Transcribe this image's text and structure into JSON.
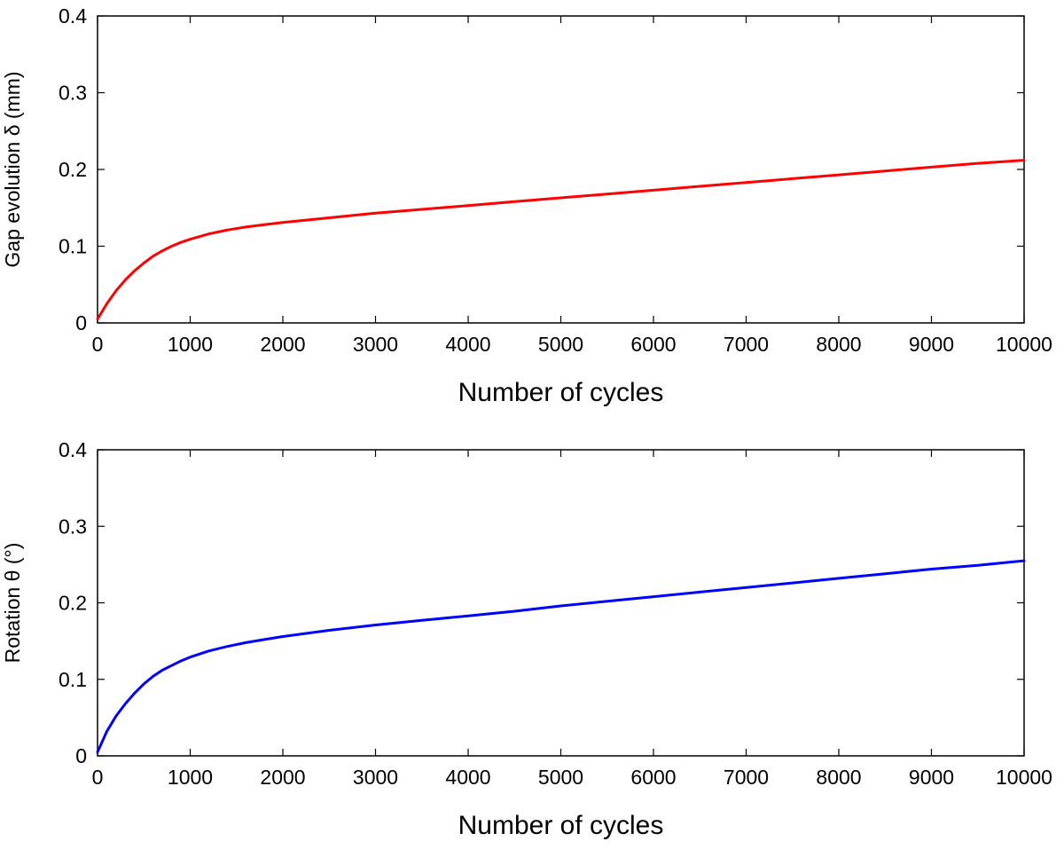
{
  "chart_data": [
    {
      "type": "line",
      "xlabel": "Number of cycles",
      "ylabel": "Gap evolution δ (mm)",
      "xlim": [
        0,
        10000
      ],
      "ylim": [
        0,
        0.4
      ],
      "xticks": [
        "0",
        "1000",
        "2000",
        "3000",
        "4000",
        "5000",
        "6000",
        "7000",
        "8000",
        "9000",
        "10000"
      ],
      "yticks": [
        "0",
        "0.1",
        "0.2",
        "0.3",
        "0.4"
      ],
      "grid": false,
      "series": [
        {
          "color": "#ff0000",
          "x": [
            0,
            100,
            200,
            300,
            400,
            500,
            600,
            700,
            800,
            900,
            1000,
            1200,
            1400,
            1600,
            1800,
            2000,
            2500,
            3000,
            3500,
            4000,
            4500,
            5000,
            5500,
            6000,
            6500,
            7000,
            7500,
            8000,
            8500,
            9000,
            9500,
            10000
          ],
          "y": [
            0.005,
            0.025,
            0.042,
            0.056,
            0.068,
            0.078,
            0.087,
            0.094,
            0.1,
            0.105,
            0.109,
            0.116,
            0.121,
            0.125,
            0.128,
            0.131,
            0.137,
            0.143,
            0.148,
            0.153,
            0.158,
            0.163,
            0.168,
            0.173,
            0.178,
            0.183,
            0.188,
            0.193,
            0.198,
            0.203,
            0.208,
            0.212
          ]
        }
      ]
    },
    {
      "type": "line",
      "xlabel": "Number of cycles",
      "ylabel": "Rotation θ (°)",
      "xlim": [
        0,
        10000
      ],
      "ylim": [
        0,
        0.4
      ],
      "xticks": [
        "0",
        "1000",
        "2000",
        "3000",
        "4000",
        "5000",
        "6000",
        "7000",
        "8000",
        "9000",
        "10000"
      ],
      "yticks": [
        "0",
        "0.1",
        "0.2",
        "0.3",
        "0.4"
      ],
      "grid": false,
      "series": [
        {
          "color": "#0000ff",
          "x": [
            0,
            100,
            200,
            300,
            400,
            500,
            600,
            700,
            800,
            900,
            1000,
            1200,
            1400,
            1600,
            1800,
            2000,
            2500,
            3000,
            3500,
            4000,
            4500,
            5000,
            5500,
            6000,
            6500,
            7000,
            7500,
            8000,
            8500,
            9000,
            9500,
            10000
          ],
          "y": [
            0.005,
            0.032,
            0.052,
            0.068,
            0.082,
            0.094,
            0.104,
            0.112,
            0.118,
            0.124,
            0.129,
            0.137,
            0.143,
            0.148,
            0.152,
            0.156,
            0.164,
            0.171,
            0.177,
            0.183,
            0.189,
            0.196,
            0.202,
            0.208,
            0.214,
            0.22,
            0.226,
            0.232,
            0.238,
            0.244,
            0.249,
            0.255
          ]
        }
      ]
    }
  ]
}
